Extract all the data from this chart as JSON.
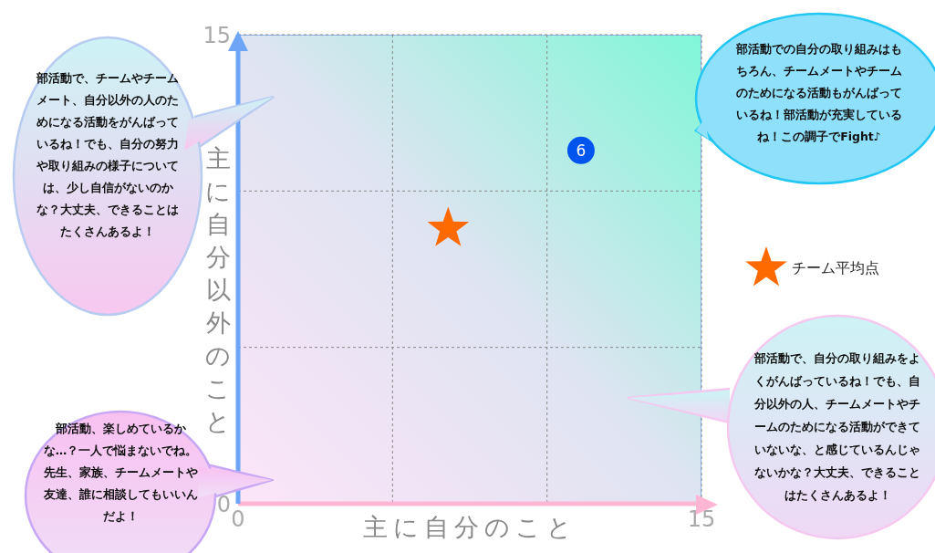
{
  "chart_data": {
    "type": "scatter",
    "xlabel": "主に自分のこと",
    "ylabel": "主に自分以外のこと",
    "xlim": [
      0,
      15
    ],
    "ylim": [
      0,
      15
    ],
    "xticks": [
      0,
      {
        "value": 5,
        "label": null
      },
      {
        "value": 10,
        "label": null
      },
      15
    ],
    "yticks": [
      0,
      {
        "value": 5,
        "label": null
      },
      {
        "value": 10,
        "label": null
      },
      15
    ],
    "grid": true,
    "legend": "right",
    "series": [
      {
        "name": "チーム平均点",
        "color": "#ff6a00",
        "marker": "star",
        "x": [
          6.8
        ],
        "values": [
          8.8
        ]
      },
      {
        "color": "#0055ee",
        "marker": "circle",
        "x": [
          11.1
        ],
        "values": [
          11.3
        ]
      }
    ],
    "annotations": [
      {
        "text": "6",
        "x": 11.1,
        "y": 11.3
      },
      "部活動で、チームやチームメート、自分以外の人のためになる活動をがんばっているね！でも、自分の努力や取り組みの様子については、少し自信がないのかな？大丈夫、できることはたくさんあるよ！",
      "部活動での自分の取り組みはもちろん、チームメートやチームのためになる活動もがんばっているね！部活動が充実しているね！この調子でFight♪",
      "部活動で、自分の取り組みをよくがんばっているね！でも、自分以外の人、チームメートやチームのためになる活動ができていないな、と感じているんじゃないかな？大丈夫、できることはたくさんあるよ！",
      "部活動、楽しめているかな…？一人で悩まないでね。先生、家族、チームメートや友達、誰に相談してもいいんだよ！"
    ]
  }
}
